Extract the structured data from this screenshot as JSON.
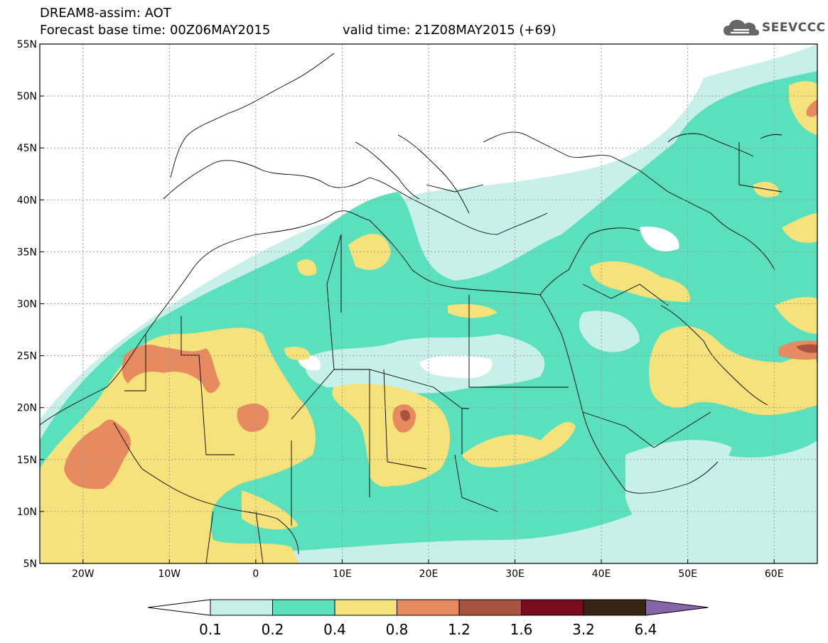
{
  "header": {
    "line1": "DREAM8-assim: AOT",
    "line2": "Forecast base time: 00Z06MAY2015",
    "valid": "valid time: 21Z08MAY2015 (+69)"
  },
  "logo": {
    "text": "SEEVCCC",
    "icon": "cloud-icon"
  },
  "map": {
    "title": "",
    "projection": "lat-lon",
    "lon_range": [
      -25,
      65
    ],
    "lat_range": [
      5,
      55
    ],
    "grid": "dotted",
    "lat_ticks": [
      {
        "value": 55,
        "label": "55N"
      },
      {
        "value": 50,
        "label": "50N"
      },
      {
        "value": 45,
        "label": "45N"
      },
      {
        "value": 40,
        "label": "40N"
      },
      {
        "value": 35,
        "label": "35N"
      },
      {
        "value": 30,
        "label": "30N"
      },
      {
        "value": 25,
        "label": "25N"
      },
      {
        "value": 20,
        "label": "20N"
      },
      {
        "value": 15,
        "label": "15N"
      },
      {
        "value": 10,
        "label": "10N"
      },
      {
        "value": 5,
        "label": "5N"
      }
    ],
    "lon_ticks": [
      {
        "value": -20,
        "label": "20W"
      },
      {
        "value": -10,
        "label": "10W"
      },
      {
        "value": 0,
        "label": "0"
      },
      {
        "value": 10,
        "label": "10E"
      },
      {
        "value": 20,
        "label": "20E"
      },
      {
        "value": 30,
        "label": "30E"
      },
      {
        "value": 40,
        "label": "40E"
      },
      {
        "value": 50,
        "label": "50E"
      },
      {
        "value": 60,
        "label": "60E"
      }
    ]
  },
  "colorbar": {
    "labels": [
      "0.1",
      "0.2",
      "0.4",
      "0.8",
      "1.2",
      "1.6",
      "3.2",
      "6.4"
    ],
    "colors": [
      "#ffffff",
      "#c8f0ea",
      "#5ae0bc",
      "#f5e27a",
      "#e88a60",
      "#a85240",
      "#7a0a1e",
      "#3a2414",
      "#8a64a8"
    ]
  }
}
